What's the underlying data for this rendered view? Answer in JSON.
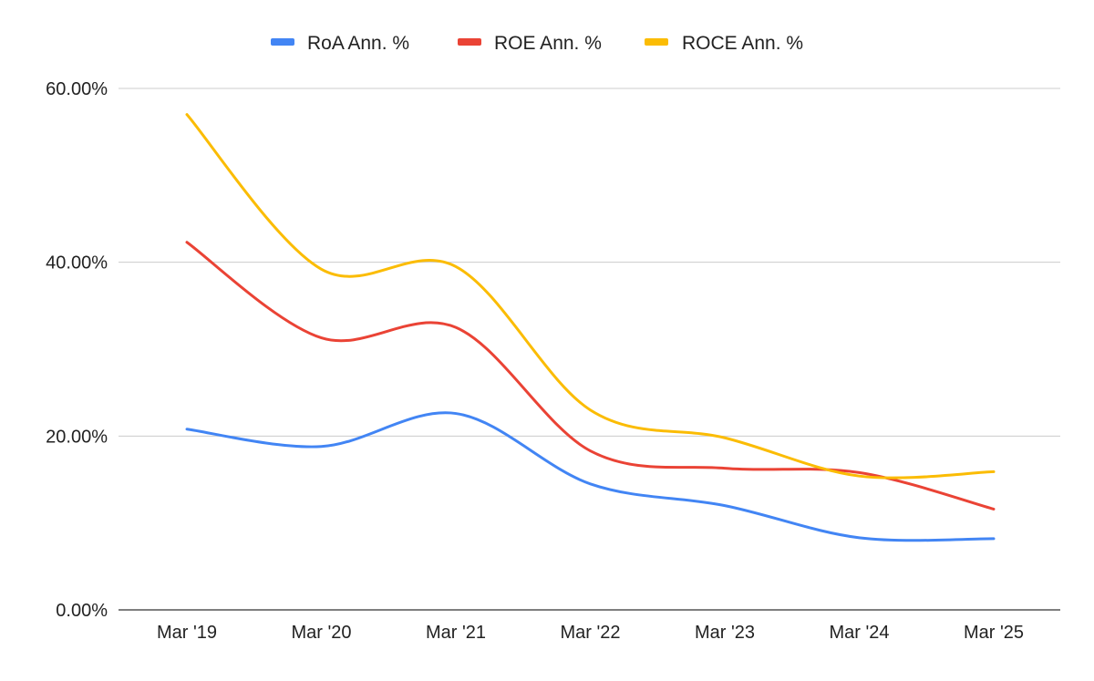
{
  "chart_data": {
    "type": "line",
    "title": "",
    "xlabel": "",
    "ylabel": "",
    "categories": [
      "Mar '19",
      "Mar '20",
      "Mar '21",
      "Mar '22",
      "Mar '23",
      "Mar '24",
      "Mar '25"
    ],
    "series": [
      {
        "name": "RoA Ann. %",
        "color": "#4285f4",
        "values": [
          20.8,
          18.8,
          22.6,
          14.5,
          12.0,
          8.3,
          8.2
        ]
      },
      {
        "name": "ROE Ann. %",
        "color": "#ea4335",
        "values": [
          42.3,
          31.3,
          32.5,
          18.3,
          16.3,
          15.8,
          11.6
        ]
      },
      {
        "name": "ROCE Ann. %",
        "color": "#fbbc04",
        "values": [
          57.0,
          39.2,
          39.5,
          23.0,
          19.8,
          15.4,
          15.9
        ]
      }
    ],
    "ylim": [
      0,
      60
    ],
    "yticks": [
      0,
      20,
      40,
      60
    ],
    "ytick_labels": [
      "0.00%",
      "20.00%",
      "40.00%",
      "60.00%"
    ],
    "grid": true,
    "legend_position": "top-center",
    "curve": "smooth"
  }
}
